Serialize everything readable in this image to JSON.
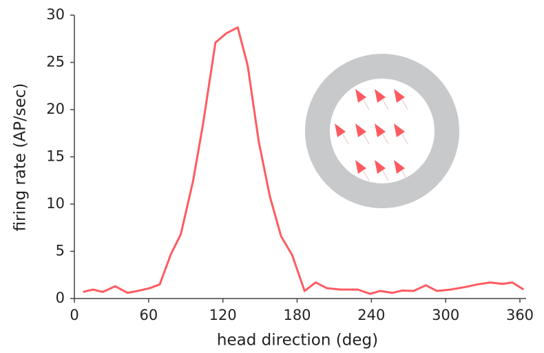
{
  "chart_data": {
    "type": "line",
    "x_label": "head direction (deg)",
    "y_label": "firing rate (AP/sec)",
    "x": [
      7,
      15,
      23,
      33,
      43,
      51,
      61,
      69,
      78,
      86,
      96,
      104,
      114,
      123,
      132,
      140,
      149,
      158,
      167,
      176,
      186,
      195,
      204,
      215,
      229,
      239,
      247,
      257,
      265,
      274,
      284,
      293,
      304,
      315,
      326,
      336,
      346,
      354,
      363
    ],
    "series": [
      {
        "color": "#ff5a60",
        "values": [
          0.7,
          0.95,
          0.7,
          1.3,
          0.6,
          0.8,
          1.1,
          1.5,
          4.7,
          6.8,
          12.5,
          18.5,
          27.1,
          28.1,
          28.7,
          24.7,
          16.6,
          10.8,
          6.6,
          4.6,
          0.8,
          1.7,
          1.1,
          0.95,
          0.95,
          0.5,
          0.8,
          0.6,
          0.85,
          0.8,
          1.4,
          0.8,
          0.95,
          1.2,
          1.5,
          1.7,
          1.55,
          1.7,
          0.95
        ]
      }
    ],
    "xlim": [
      0,
      365
    ],
    "ylim": [
      0,
      30
    ],
    "xticks": [
      0,
      60,
      120,
      180,
      240,
      300,
      360
    ],
    "yticks": [
      0,
      5,
      10,
      15,
      20,
      25,
      30
    ]
  }
}
